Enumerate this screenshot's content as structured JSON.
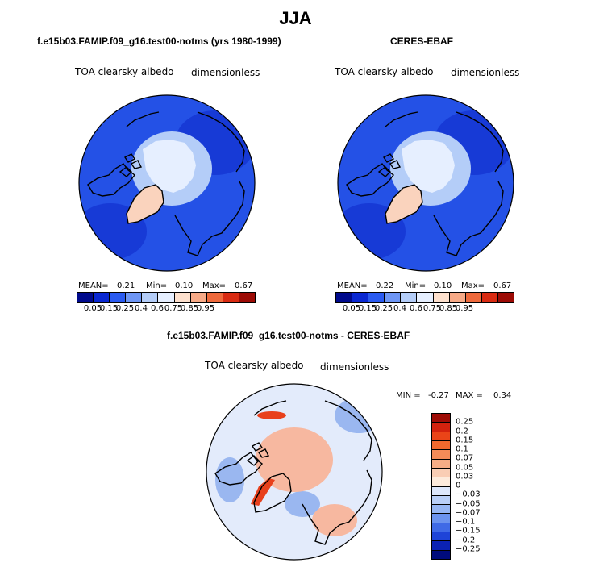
{
  "main_title": "JJA",
  "panels": [
    {
      "title": "f.e15b03.FAMIP.f09_g16.test00-notms (yrs 1980-1999)",
      "variable": "TOA clearsky albedo",
      "units": "dimensionless",
      "stats": {
        "mean_label": "MEAN=",
        "mean": "0.21",
        "min_label": "Min=",
        "min": "0.10",
        "max_label": "Max=",
        "max": "0.67"
      }
    },
    {
      "title": "CERES-EBAF",
      "variable": "TOA clearsky albedo",
      "units": "dimensionless",
      "stats": {
        "mean_label": "MEAN=",
        "mean": "0.22",
        "min_label": "Min=",
        "min": "0.10",
        "max_label": "Max=",
        "max": "0.67"
      }
    },
    {
      "title": "f.e15b03.FAMIP.f09_g16.test00-notms - CERES-EBAF",
      "variable": "TOA clearsky albedo",
      "units": "dimensionless",
      "stats": {
        "min_label": "MIN =",
        "min": "-0.27",
        "max_label": "MAX =",
        "max": "0.34"
      }
    }
  ],
  "colorbar_abs": {
    "ticks": [
      "0.05",
      "0.15",
      "0.25",
      "0.4",
      "0.6",
      "0.75",
      "0.85",
      "0.95"
    ],
    "colors": [
      "#000a8c",
      "#0a28d2",
      "#2a5af0",
      "#6e96f5",
      "#b4cdf8",
      "#e6efff",
      "#fde0cd",
      "#f7aa87",
      "#ef6a3c",
      "#d92b12",
      "#9c0b05"
    ]
  },
  "colorbar_diff": {
    "ticks": [
      "0.25",
      "0.2",
      "0.15",
      "0.1",
      "0.07",
      "0.05",
      "0.03",
      "0",
      "−0.03",
      "−0.05",
      "−0.07",
      "−0.1",
      "−0.15",
      "−0.2",
      "−0.25"
    ],
    "colors": [
      "#9e0c06",
      "#d3220e",
      "#ea4418",
      "#f2692e",
      "#f48b58",
      "#f6ad86",
      "#f9cdb4",
      "#fdebdc",
      "#dde7fb",
      "#b9cff7",
      "#96b6f3",
      "#6b93ee",
      "#3f6ae6",
      "#1e44d8",
      "#0b22b4",
      "#000b7c"
    ]
  },
  "map_colors": {
    "ocean_abs": "#2451e6",
    "ocean_dark": "#173ad6",
    "ice": "#e6efff",
    "ice_mid": "#b4cdf8",
    "greenland": "#fad3bd",
    "diff_base": "#e3ebfb",
    "diff_pos": "#f7b8a0",
    "diff_strong": "#e8401c",
    "diff_neg": "#9ab7f0"
  }
}
